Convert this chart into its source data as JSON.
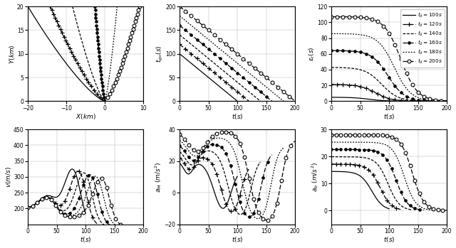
{
  "td_values": [
    100,
    120,
    140,
    160,
    180,
    200
  ],
  "legend_labels": [
    "$t_d=100s$",
    "$t_d=120s$",
    "$t_d=140s$",
    "$t_d=160s$",
    "$t_d=180s$",
    "$t_d=200s$"
  ],
  "fig_width": 6.4,
  "fig_height": 3.49,
  "dpi": 100,
  "line_styles": [
    {
      "ls": "-",
      "marker": null,
      "ms": 3.5,
      "mfc": "black",
      "mew": 0.8,
      "lw": 0.9
    },
    {
      "ls": "--",
      "marker": "+",
      "ms": 5,
      "mfc": "black",
      "mew": 0.9,
      "lw": 0.9
    },
    {
      "ls": "--",
      "marker": null,
      "ms": 3.5,
      "mfc": "black",
      "mew": 0.8,
      "lw": 0.9
    },
    {
      "ls": "--",
      "marker": ".",
      "ms": 5,
      "mfc": "black",
      "mew": 0.8,
      "lw": 0.9
    },
    {
      "ls": "--",
      "marker": null,
      "ms": 3.5,
      "mfc": "black",
      "mew": 0.8,
      "lw": 0.9
    },
    {
      "ls": "--",
      "marker": "o",
      "ms": 3.5,
      "mfc": "white",
      "mew": 0.8,
      "lw": 0.9
    }
  ],
  "dash_seqs": [
    null,
    [
      5,
      2
    ],
    [
      3,
      1.5
    ],
    [
      5,
      2
    ],
    [
      1.5,
      1.5
    ],
    [
      5,
      2
    ]
  ],
  "markevery": [
    null,
    15,
    null,
    12,
    null,
    12
  ]
}
